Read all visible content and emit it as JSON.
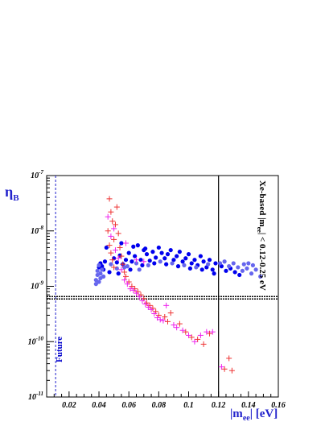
{
  "chart_data": {
    "type": "scatter",
    "title": "",
    "xlabel_main": "|m",
    "xlabel_sub": "ee",
    "xlabel_tail": "| [eV]",
    "ylabel_main": "η",
    "ylabel_sub": "B",
    "xlim": [
      0.005,
      0.16
    ],
    "ylim_exp": [
      -11,
      -7
    ],
    "yscale": "log",
    "grid": false,
    "x_ticks": [
      "0.02",
      "0.04",
      "0.06",
      "0.08",
      "0.1",
      "0.12",
      "0.14",
      "0.16"
    ],
    "x_tick_values": [
      0.02,
      0.04,
      0.06,
      0.08,
      0.1,
      0.12,
      0.14,
      0.16
    ],
    "y_ticks": [
      {
        "exp": -11,
        "base": "10",
        "sup": "-11"
      },
      {
        "exp": -10,
        "base": "10",
        "sup": "-10"
      },
      {
        "exp": -9,
        "base": "10",
        "sup": "-9"
      },
      {
        "exp": -8,
        "base": "10",
        "sup": "-8"
      },
      {
        "exp": -7,
        "base": "10",
        "sup": "-7"
      }
    ],
    "reference_lines": {
      "vertical_solid_x": 0.12,
      "vertical_dashed_x": 0.011,
      "horizontal_dotted_y": 6.2e-10
    },
    "annotations": {
      "future": "Future",
      "xe_bound": {
        "pre": "Xe-based |m",
        "sub": "ee",
        "post": "| < 0.12-0.25 eV"
      }
    },
    "series": [
      {
        "marker": "circle",
        "color": "#0000ee",
        "points": [
          [
            0.04,
            2.2e-09
          ],
          [
            0.041,
            2.6e-09
          ],
          [
            0.042,
            2.3e-09
          ],
          [
            0.043,
            2e-09
          ],
          [
            0.044,
            2.8e-09
          ],
          [
            0.05,
            3.2e-09
          ],
          [
            0.052,
            2.7e-09
          ],
          [
            0.054,
            3.6e-09
          ],
          [
            0.056,
            2.5e-09
          ],
          [
            0.058,
            3e-09
          ],
          [
            0.06,
            4e-09
          ],
          [
            0.062,
            2.8e-09
          ],
          [
            0.064,
            3.5e-09
          ],
          [
            0.066,
            5.5e-09
          ],
          [
            0.068,
            3e-09
          ],
          [
            0.07,
            4.5e-09
          ],
          [
            0.072,
            3.8e-09
          ],
          [
            0.074,
            2.9e-09
          ],
          [
            0.076,
            4.2e-09
          ],
          [
            0.078,
            3.3e-09
          ],
          [
            0.08,
            5e-09
          ],
          [
            0.082,
            4e-09
          ],
          [
            0.084,
            3.2e-09
          ],
          [
            0.086,
            3.8e-09
          ],
          [
            0.088,
            4.5e-09
          ],
          [
            0.09,
            3e-09
          ],
          [
            0.092,
            3.5e-09
          ],
          [
            0.094,
            4.2e-09
          ],
          [
            0.096,
            2.8e-09
          ],
          [
            0.098,
            3.2e-09
          ],
          [
            0.1,
            3.8e-09
          ],
          [
            0.102,
            2.6e-09
          ],
          [
            0.104,
            3e-09
          ],
          [
            0.106,
            2.4e-09
          ],
          [
            0.108,
            3.5e-09
          ],
          [
            0.11,
            2.8e-09
          ],
          [
            0.112,
            2.2e-09
          ],
          [
            0.114,
            3e-09
          ],
          [
            0.116,
            2e-09
          ],
          [
            0.118,
            2.6e-09
          ],
          [
            0.122,
            2.3e-09
          ],
          [
            0.125,
            1.9e-09
          ],
          [
            0.128,
            2.1e-09
          ],
          [
            0.131,
            1.8e-09
          ],
          [
            0.134,
            1.6e-09
          ],
          [
            0.047,
            1.8e-09
          ],
          [
            0.053,
            1.7e-09
          ],
          [
            0.061,
            2e-09
          ],
          [
            0.069,
            2.4e-09
          ],
          [
            0.077,
            2.6e-09
          ],
          [
            0.085,
            2.5e-09
          ],
          [
            0.093,
            2.3e-09
          ],
          [
            0.101,
            2.1e-09
          ],
          [
            0.109,
            2e-09
          ],
          [
            0.117,
            1.7e-09
          ],
          [
            0.045,
            5e-09
          ],
          [
            0.055,
            6e-09
          ],
          [
            0.063,
            5.2e-09
          ],
          [
            0.071,
            4.8e-09
          ]
        ]
      },
      {
        "marker": "circle",
        "color": "#6666ee",
        "points": [
          [
            0.038,
            1.1e-09
          ],
          [
            0.038,
            1.3e-09
          ],
          [
            0.039,
            1.6e-09
          ],
          [
            0.039,
            1.9e-09
          ],
          [
            0.04,
            2.4e-09
          ],
          [
            0.04,
            1.2e-09
          ],
          [
            0.041,
            1.4e-09
          ],
          [
            0.041,
            1.7e-09
          ],
          [
            0.042,
            2e-09
          ],
          [
            0.043,
            1.5e-09
          ],
          [
            0.048,
            2.5e-09
          ],
          [
            0.057,
            2.2e-09
          ],
          [
            0.065,
            2.6e-09
          ],
          [
            0.073,
            2.4e-09
          ],
          [
            0.081,
            2.8e-09
          ],
          [
            0.089,
            2.6e-09
          ],
          [
            0.097,
            2.4e-09
          ],
          [
            0.105,
            2.2e-09
          ],
          [
            0.113,
            2.5e-09
          ],
          [
            0.121,
            2.6e-09
          ],
          [
            0.124,
            2.8e-09
          ],
          [
            0.127,
            2.3e-09
          ],
          [
            0.13,
            2.6e-09
          ],
          [
            0.133,
            2.2e-09
          ],
          [
            0.136,
            1.9e-09
          ],
          [
            0.139,
            2.1e-09
          ],
          [
            0.142,
            1.7e-09
          ],
          [
            0.145,
            2e-09
          ],
          [
            0.148,
            1.5e-09
          ],
          [
            0.137,
            2.5e-09
          ],
          [
            0.14,
            2.6e-09
          ],
          [
            0.143,
            2.4e-09
          ],
          [
            0.052,
            2.1e-09
          ],
          [
            0.059,
            2.3e-09
          ],
          [
            0.067,
            2e-09
          ]
        ]
      },
      {
        "marker": "cross",
        "color": "#ee3333",
        "points": [
          [
            0.047,
            3.8e-08
          ],
          [
            0.048,
            2.2e-08
          ],
          [
            0.049,
            1.5e-08
          ],
          [
            0.046,
            1e-08
          ],
          [
            0.05,
            7e-09
          ],
          [
            0.052,
            2.7e-08
          ],
          [
            0.051,
            1.3e-08
          ],
          [
            0.053,
            9e-09
          ],
          [
            0.054,
            5e-09
          ],
          [
            0.047,
            5.5e-09
          ],
          [
            0.048,
            4e-09
          ],
          [
            0.049,
            3e-09
          ],
          [
            0.05,
            2.2e-09
          ],
          [
            0.055,
            3.5e-09
          ],
          [
            0.056,
            2.5e-09
          ],
          [
            0.057,
            1.8e-09
          ],
          [
            0.058,
            1.5e-09
          ],
          [
            0.06,
            1.2e-09
          ],
          [
            0.062,
            1e-09
          ],
          [
            0.064,
            9e-10
          ],
          [
            0.066,
            8e-10
          ],
          [
            0.068,
            7e-10
          ],
          [
            0.07,
            6e-10
          ],
          [
            0.072,
            5e-10
          ],
          [
            0.074,
            4.5e-10
          ],
          [
            0.076,
            4e-10
          ],
          [
            0.078,
            3.5e-10
          ],
          [
            0.08,
            3e-10
          ],
          [
            0.084,
            2.8e-10
          ],
          [
            0.086,
            2.3e-10
          ],
          [
            0.088,
            3.3e-10
          ],
          [
            0.094,
            2.1e-10
          ],
          [
            0.098,
            1.5e-10
          ],
          [
            0.102,
            1.2e-10
          ],
          [
            0.106,
            1.1e-10
          ],
          [
            0.11,
            9e-11
          ],
          [
            0.114,
            1.4e-10
          ],
          [
            0.124,
            3.2e-11
          ],
          [
            0.127,
            5e-11
          ],
          [
            0.129,
            3e-11
          ]
        ]
      },
      {
        "marker": "cross",
        "color": "#ee22ee",
        "points": [
          [
            0.046,
            1.8e-08
          ],
          [
            0.048,
            8e-09
          ],
          [
            0.051,
            4.5e-09
          ],
          [
            0.053,
            3.2e-09
          ],
          [
            0.055,
            2e-09
          ],
          [
            0.057,
            1.3e-09
          ],
          [
            0.059,
            1.1e-09
          ],
          [
            0.061,
            9e-10
          ],
          [
            0.063,
            8.5e-10
          ],
          [
            0.065,
            7.5e-10
          ],
          [
            0.067,
            6.5e-10
          ],
          [
            0.069,
            5.5e-10
          ],
          [
            0.071,
            4.8e-10
          ],
          [
            0.073,
            4.2e-10
          ],
          [
            0.075,
            3.8e-10
          ],
          [
            0.077,
            3.2e-10
          ],
          [
            0.079,
            2.7e-10
          ],
          [
            0.081,
            2.5e-10
          ],
          [
            0.083,
            2.4e-10
          ],
          [
            0.09,
            2e-10
          ],
          [
            0.092,
            1.8e-10
          ],
          [
            0.096,
            1.6e-10
          ],
          [
            0.1,
            1.3e-10
          ],
          [
            0.104,
            1e-10
          ],
          [
            0.108,
            1.3e-10
          ],
          [
            0.112,
            1.5e-10
          ],
          [
            0.116,
            1.5e-10
          ],
          [
            0.122,
            3.5e-11
          ],
          [
            0.058,
            6e-09
          ],
          [
            0.05,
            1.1e-08
          ],
          [
            0.065,
            3e-09
          ],
          [
            0.07,
            2.8e-09
          ],
          [
            0.085,
            4.5e-10
          ]
        ]
      }
    ]
  }
}
